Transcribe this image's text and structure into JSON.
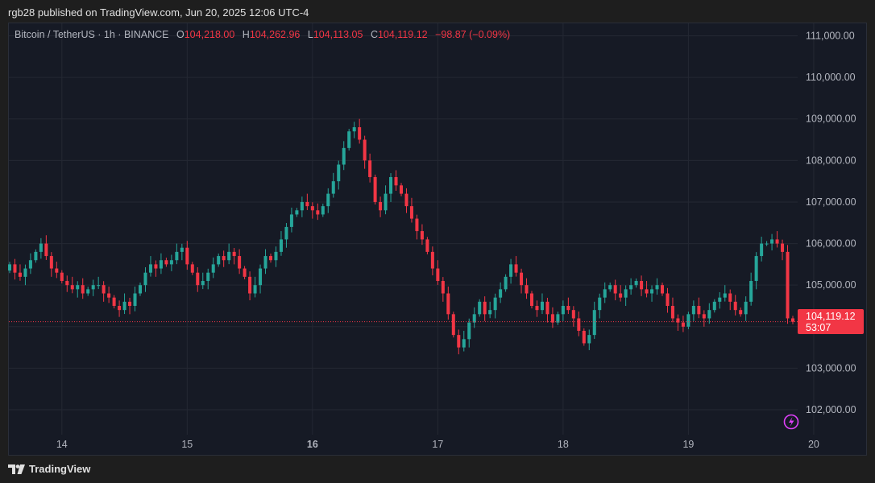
{
  "header": {
    "publish_text": "rgb28 published on TradingView.com, Jun 20, 2025 12:06 UTC-4"
  },
  "legend": {
    "symbol": "Bitcoin / TetherUS · 1h · BINANCE",
    "o_label": "O",
    "o_value": "104,218.00",
    "h_label": "H",
    "h_value": "104,262.96",
    "l_label": "L",
    "l_value": "104,113.05",
    "c_label": "C",
    "c_value": "104,119.12",
    "change": "−98.87 (−0.09%)"
  },
  "price_tag": {
    "price": "104,119.12",
    "countdown": "53:07"
  },
  "footer": {
    "brand": "TradingView"
  },
  "colors": {
    "up": "#26a69a",
    "down": "#f23645",
    "grid": "#242833",
    "axis_text": "#b2b5be",
    "bg": "#161a25"
  },
  "chart_data": {
    "type": "candlestick",
    "title": "Bitcoin / TetherUS · 1h · BINANCE",
    "ylim": [
      101400,
      111300
    ],
    "yticks": [
      102000,
      103000,
      104000,
      105000,
      106000,
      107000,
      108000,
      109000,
      110000,
      111000
    ],
    "ytick_labels": [
      "102,000.00",
      "103,000.00",
      "104,000.00",
      "105,000.00",
      "106,000.00",
      "107,000.00",
      "108,000.00",
      "109,000.00",
      "110,000.00",
      "111,000.00"
    ],
    "x_ticks": [
      {
        "label": "14",
        "bold": false,
        "index": 10
      },
      {
        "label": "15",
        "bold": false,
        "index": 34
      },
      {
        "label": "16",
        "bold": true,
        "index": 58
      },
      {
        "label": "17",
        "bold": false,
        "index": 82
      },
      {
        "label": "18",
        "bold": false,
        "index": 106
      },
      {
        "label": "19",
        "bold": false,
        "index": 130
      },
      {
        "label": "20",
        "bold": false,
        "index": 154
      }
    ],
    "last_price": 104119.12,
    "series_closes": [
      105500,
      105300,
      105200,
      105400,
      105600,
      105800,
      106000,
      105700,
      105400,
      105300,
      105100,
      105000,
      104900,
      105000,
      104800,
      104900,
      105000,
      105000,
      104800,
      104700,
      104500,
      104400,
      104600,
      104500,
      104800,
      105000,
      105300,
      105500,
      105400,
      105600,
      105500,
      105600,
      105800,
      105900,
      105500,
      105300,
      105000,
      105100,
      105300,
      105500,
      105700,
      105600,
      105800,
      105700,
      105400,
      105200,
      104800,
      105000,
      105400,
      105700,
      105600,
      105800,
      106100,
      106400,
      106700,
      106800,
      107000,
      106900,
      106800,
      106700,
      106900,
      107200,
      107500,
      107900,
      108300,
      108700,
      108800,
      108500,
      108000,
      107600,
      107000,
      106800,
      107200,
      107600,
      107400,
      107200,
      106900,
      106600,
      106300,
      106100,
      105800,
      105400,
      105100,
      104800,
      104300,
      103800,
      103500,
      103700,
      104100,
      104300,
      104600,
      104300,
      104400,
      104700,
      104900,
      105200,
      105500,
      105300,
      105000,
      104800,
      104500,
      104400,
      104600,
      104300,
      104100,
      104300,
      104500,
      104400,
      104200,
      103900,
      103600,
      103800,
      104400,
      104700,
      104900,
      105000,
      104800,
      104700,
      104900,
      105000,
      105100,
      104900,
      104800,
      104900,
      105000,
      104800,
      104500,
      104200,
      104100,
      104000,
      104300,
      104500,
      104300,
      104200,
      104400,
      104600,
      104700,
      104800,
      104600,
      104400,
      104300,
      104600,
      105100,
      105700,
      106000,
      106000,
      106100,
      106000,
      105800,
      104200,
      104119.12
    ]
  }
}
